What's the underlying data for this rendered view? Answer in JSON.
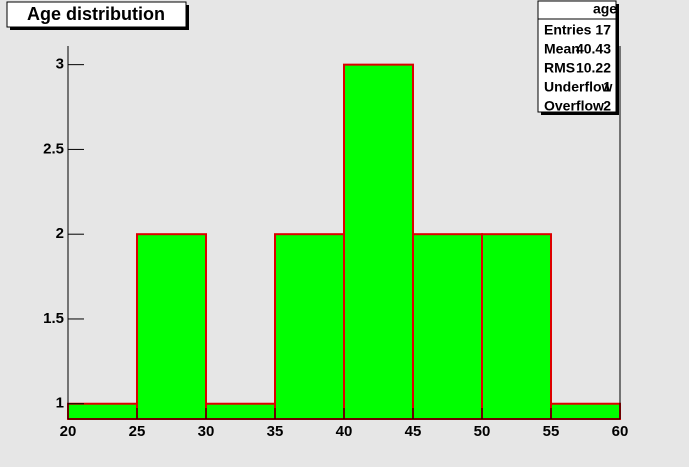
{
  "chart_data": {
    "type": "histogram",
    "title": "Age distribution",
    "bins": [
      20,
      25,
      30,
      35,
      40,
      45,
      50,
      55,
      60
    ],
    "counts": [
      1,
      2,
      1,
      2,
      3,
      2,
      2,
      1
    ],
    "color": "#00ff00",
    "edge_color": "#dd0000",
    "xlim": [
      20,
      60
    ],
    "xticks": [
      20,
      25,
      30,
      35,
      40,
      45,
      50,
      55,
      60
    ],
    "ylim": [
      0.91,
      3.11
    ],
    "yticks": [
      1,
      1.5,
      2,
      2.5,
      3
    ],
    "stats": {
      "title": "age",
      "rows": [
        {
          "label": "Entries",
          "value": 17
        },
        {
          "label": "Mean",
          "value": 40.43
        },
        {
          "label": "RMS",
          "value": 10.22
        },
        {
          "label": "Underflow",
          "value": 1
        },
        {
          "label": "Overflow",
          "value": 2
        }
      ]
    }
  }
}
